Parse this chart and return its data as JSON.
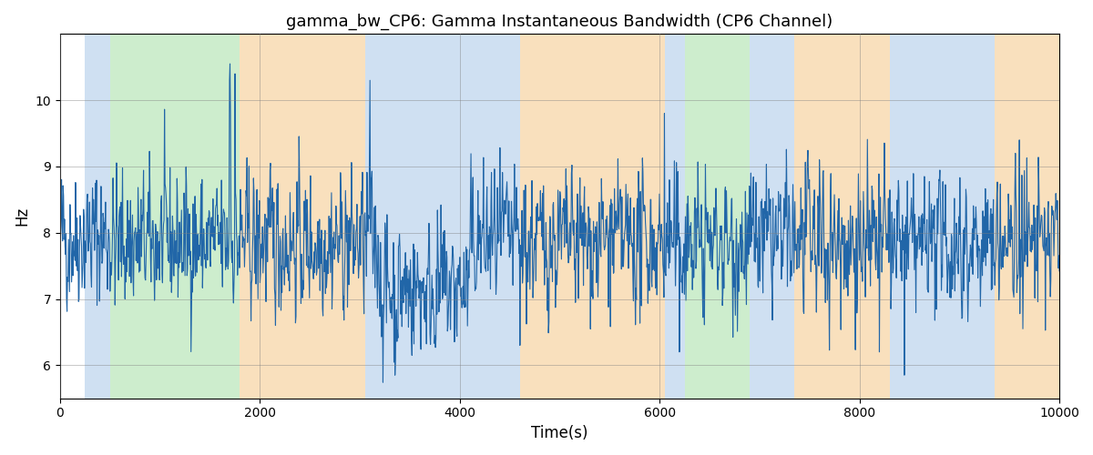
{
  "title": "gamma_bw_CP6: Gamma Instantaneous Bandwidth (CP6 Channel)",
  "xlabel": "Time(s)",
  "ylabel": "Hz",
  "xlim": [
    0,
    10000
  ],
  "ylim": [
    5.5,
    11.0
  ],
  "yticks": [
    6,
    7,
    8,
    9,
    10
  ],
  "line_color": "#2166a8",
  "line_width": 0.8,
  "bg_regions": [
    {
      "xmin": 250,
      "xmax": 500,
      "color": "#a8c8e8",
      "alpha": 0.55
    },
    {
      "xmin": 500,
      "xmax": 1800,
      "color": "#90d890",
      "alpha": 0.45
    },
    {
      "xmin": 1800,
      "xmax": 3050,
      "color": "#f5c888",
      "alpha": 0.55
    },
    {
      "xmin": 3050,
      "xmax": 4600,
      "color": "#a8c8e8",
      "alpha": 0.55
    },
    {
      "xmin": 4600,
      "xmax": 6050,
      "color": "#f5c888",
      "alpha": 0.55
    },
    {
      "xmin": 6050,
      "xmax": 6250,
      "color": "#a8c8e8",
      "alpha": 0.55
    },
    {
      "xmin": 6250,
      "xmax": 6900,
      "color": "#90d890",
      "alpha": 0.45
    },
    {
      "xmin": 6900,
      "xmax": 7350,
      "color": "#a8c8e8",
      "alpha": 0.55
    },
    {
      "xmin": 7350,
      "xmax": 8300,
      "color": "#f5c888",
      "alpha": 0.55
    },
    {
      "xmin": 8300,
      "xmax": 9350,
      "color": "#a8c8e8",
      "alpha": 0.55
    },
    {
      "xmin": 9350,
      "xmax": 10000,
      "color": "#f5c888",
      "alpha": 0.55
    }
  ],
  "figsize": [
    12.0,
    5.0
  ],
  "dpi": 100,
  "seed": 42,
  "n_points": 2000,
  "base": 7.85,
  "noise_std": 0.52
}
